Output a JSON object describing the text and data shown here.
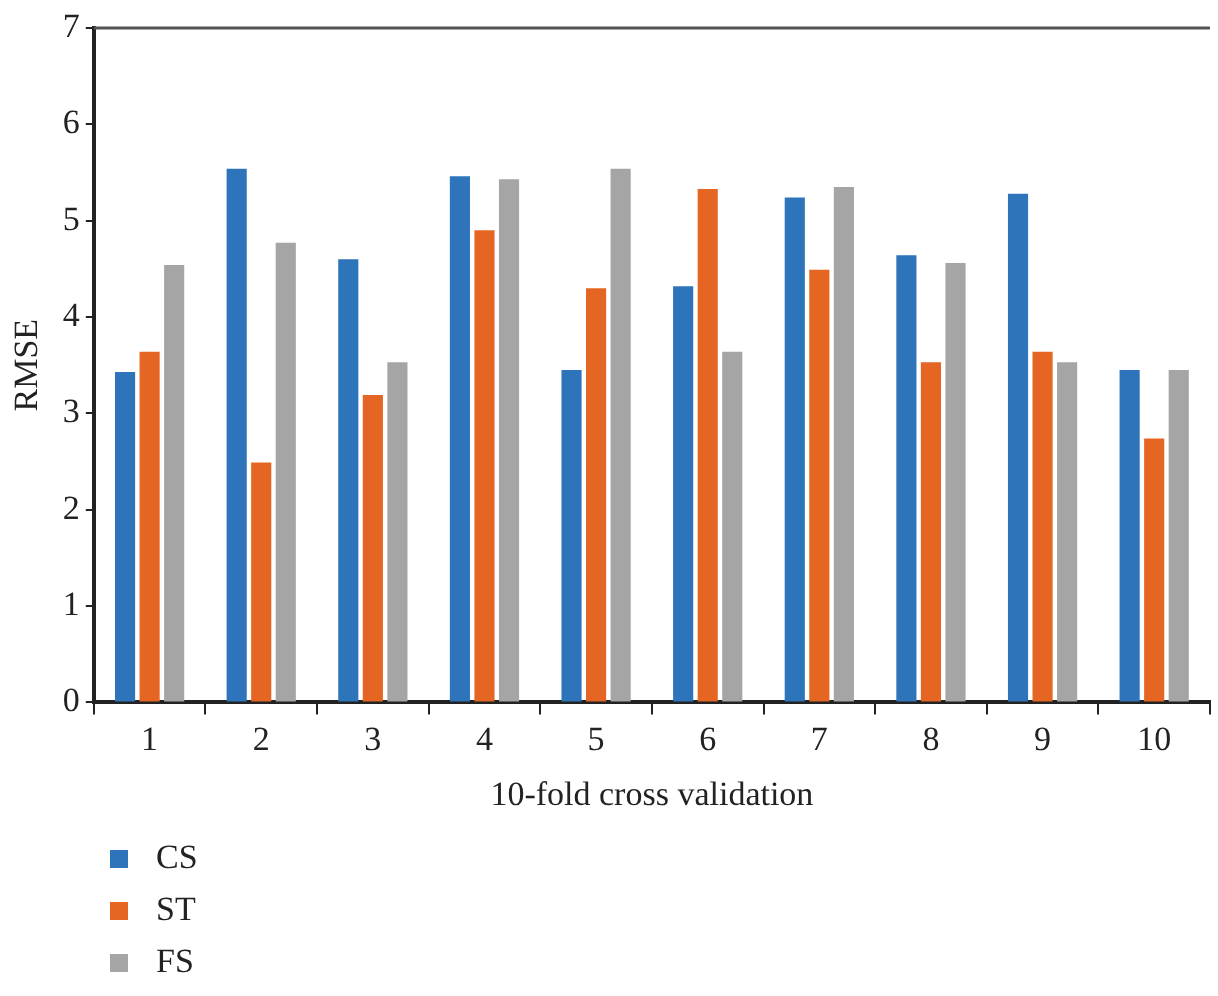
{
  "chart_data": {
    "type": "bar",
    "xlabel": "10-fold cross validation",
    "ylabel": "RMSE",
    "categories": [
      "1",
      "2",
      "3",
      "4",
      "5",
      "6",
      "7",
      "8",
      "9",
      "10"
    ],
    "series": [
      {
        "name": "CS",
        "color": "#2e74ba",
        "values": [
          3.43,
          5.54,
          4.6,
          5.46,
          3.45,
          4.32,
          5.24,
          4.64,
          5.28,
          3.45
        ]
      },
      {
        "name": "ST",
        "color": "#e46622",
        "values": [
          3.64,
          2.49,
          3.19,
          4.9,
          4.3,
          5.33,
          4.49,
          3.53,
          3.64,
          2.74
        ]
      },
      {
        "name": "FS",
        "color": "#a6a5a6",
        "values": [
          4.54,
          4.77,
          3.53,
          5.43,
          5.54,
          3.64,
          5.35,
          4.56,
          3.53,
          3.45
        ]
      }
    ],
    "ylim": [
      0,
      7
    ],
    "yticks": [
      0,
      1,
      2,
      3,
      4,
      5,
      6,
      7
    ],
    "grid": false,
    "legend": "bottom left"
  }
}
